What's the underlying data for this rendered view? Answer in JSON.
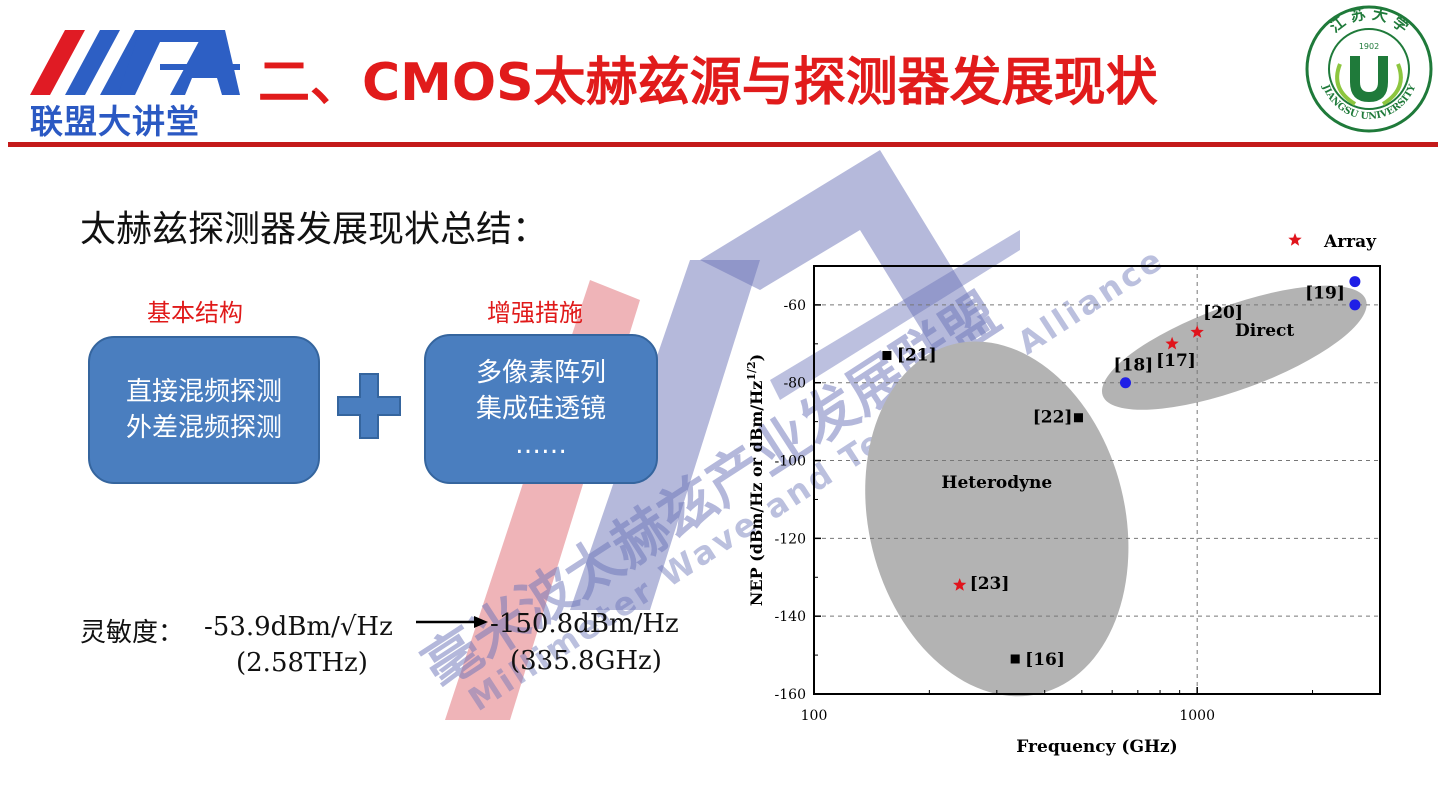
{
  "header": {
    "logo_subtitle": "联盟大讲堂",
    "title": "二、CMOS太赫兹源与探测器发展现状",
    "seal_top_text": "江 苏 大 学",
    "seal_year": "1902",
    "seal_bottom_text": "JIANGSU UNIVERSITY",
    "accent_color": "#e11b1b"
  },
  "watermark": {
    "chinese": "毫米波太赫兹产业发展联盟",
    "english": "Millimeter Wave and Terahertz Alliance"
  },
  "summary_heading": "太赫兹探测器发展现状总结：",
  "basic": {
    "label": "基本结构",
    "lines": [
      "直接混频探测",
      "外差混频探测"
    ]
  },
  "enhance": {
    "label": "增强措施",
    "lines": [
      "多像素阵列",
      "集成硅透镜",
      "……"
    ]
  },
  "sensitivity": {
    "label": "灵敏度：",
    "value1": "-53.9dBm/√Hz",
    "freq1": "(2.58THz)",
    "value2": "-150.8dBm/Hz",
    "freq2": "(335.8GHz)"
  },
  "chart_data": {
    "type": "scatter",
    "xlabel": "Frequency (GHz)",
    "ylabel": "NEP (dBm/Hz or dBm/Hz^1/2)",
    "xscale": "log",
    "xlim": [
      100,
      3000
    ],
    "ylim": [
      -160,
      -50
    ],
    "xticks": [
      "100",
      "1000"
    ],
    "yticks": [
      "-60",
      "-80",
      "-100",
      "-120",
      "-140",
      "-160"
    ],
    "grid": "dashed",
    "legend": {
      "position": "top-right",
      "entries": [
        "Array"
      ]
    },
    "regions": [
      {
        "label": "Heterodyne",
        "color": "#b3b3b3"
      },
      {
        "label": "Direct",
        "color": "#b3b3b3"
      }
    ],
    "points": [
      {
        "ref": "[21]",
        "x": 155,
        "y": -73,
        "marker": "square"
      },
      {
        "ref": "[22]",
        "x": 490,
        "y": -89,
        "marker": "square"
      },
      {
        "ref": "[16]",
        "x": 335,
        "y": -151,
        "marker": "square"
      },
      {
        "ref": "[23]",
        "x": 240,
        "y": -132,
        "marker": "star"
      },
      {
        "ref": "[18]",
        "x": 650,
        "y": -80,
        "marker": "circle"
      },
      {
        "ref": "[17]",
        "x": 860,
        "y": -70,
        "marker": "star"
      },
      {
        "ref": "[20]",
        "x": 1000,
        "y": -67,
        "marker": "star"
      },
      {
        "ref": "[19]",
        "x": 2580,
        "y": -54,
        "marker": "circle"
      },
      {
        "ref": "",
        "x": 2580,
        "y": -60,
        "marker": "circle"
      }
    ],
    "colors": {
      "star": "#e0141c",
      "circle": "#1f1fe6",
      "square": "#000000"
    }
  }
}
